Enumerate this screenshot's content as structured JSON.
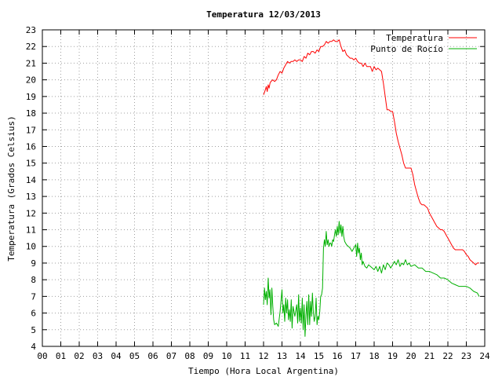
{
  "chart_data": {
    "type": "line",
    "title": "Temperatura 12/03/2013",
    "xlabel": "Tiempo (Hora Local Argentina)",
    "ylabel": "Temperatura (Grados Celsius)",
    "xlim": [
      0,
      24
    ],
    "ylim": [
      4,
      23
    ],
    "x_ticks": [
      "00",
      "01",
      "02",
      "03",
      "04",
      "05",
      "06",
      "07",
      "08",
      "09",
      "10",
      "11",
      "12",
      "13",
      "14",
      "15",
      "16",
      "17",
      "18",
      "19",
      "20",
      "21",
      "22",
      "23",
      "24"
    ],
    "y_ticks": [
      "4",
      "5",
      "6",
      "7",
      "8",
      "9",
      "10",
      "11",
      "12",
      "13",
      "14",
      "15",
      "16",
      "17",
      "18",
      "19",
      "20",
      "21",
      "22",
      "23"
    ],
    "grid": true,
    "legend_position": "top-right",
    "series": [
      {
        "name": "Temperatura",
        "color": "#ff0000",
        "x": [
          12.0,
          12.1,
          12.15,
          12.2,
          12.25,
          12.3,
          12.35,
          12.4,
          12.5,
          12.6,
          12.7,
          12.8,
          12.9,
          13.0,
          13.1,
          13.2,
          13.3,
          13.4,
          13.5,
          13.6,
          13.7,
          13.8,
          13.9,
          14.0,
          14.1,
          14.2,
          14.3,
          14.4,
          14.5,
          14.6,
          14.7,
          14.8,
          14.9,
          15.0,
          15.1,
          15.2,
          15.3,
          15.4,
          15.5,
          15.6,
          15.7,
          15.8,
          15.9,
          16.0,
          16.1,
          16.2,
          16.3,
          16.4,
          16.5,
          16.6,
          16.7,
          16.8,
          16.9,
          17.0,
          17.1,
          17.2,
          17.3,
          17.4,
          17.5,
          17.6,
          17.7,
          17.8,
          17.9,
          18.0,
          18.1,
          18.2,
          18.3,
          18.4,
          18.5,
          18.6,
          18.7,
          18.8,
          18.9,
          19.0,
          19.1,
          19.2,
          19.3,
          19.4,
          19.5,
          19.6,
          19.7,
          19.8,
          19.9,
          20.0,
          20.1,
          20.2,
          20.3,
          20.4,
          20.5,
          20.6,
          20.7,
          20.8,
          20.9,
          21.0,
          21.1,
          21.2,
          21.3,
          21.4,
          21.5,
          21.6,
          21.7,
          21.8,
          21.9,
          22.0,
          22.1,
          22.2,
          22.3,
          22.4,
          22.5,
          22.6,
          22.7,
          22.8,
          22.9,
          23.0,
          23.1,
          23.2,
          23.3,
          23.4,
          23.5,
          23.6,
          23.7
        ],
        "values": [
          19.1,
          19.4,
          19.6,
          19.3,
          19.7,
          19.5,
          19.8,
          19.9,
          20.0,
          19.9,
          20.0,
          20.3,
          20.5,
          20.4,
          20.7,
          20.9,
          21.1,
          21.0,
          21.1,
          21.1,
          21.2,
          21.1,
          21.2,
          21.2,
          21.1,
          21.4,
          21.3,
          21.6,
          21.5,
          21.7,
          21.7,
          21.6,
          21.8,
          21.7,
          22.0,
          22.0,
          22.1,
          22.3,
          22.2,
          22.3,
          22.3,
          22.4,
          22.3,
          22.3,
          22.4,
          22.0,
          21.7,
          21.8,
          21.5,
          21.4,
          21.3,
          21.3,
          21.2,
          21.3,
          21.1,
          21.0,
          21.0,
          20.8,
          21.0,
          20.8,
          20.8,
          20.8,
          20.5,
          20.8,
          20.6,
          20.7,
          20.6,
          20.5,
          19.8,
          19.0,
          18.2,
          18.2,
          18.1,
          18.1,
          17.5,
          16.8,
          16.3,
          15.9,
          15.5,
          15.0,
          14.7,
          14.7,
          14.7,
          14.7,
          14.3,
          13.7,
          13.3,
          12.9,
          12.6,
          12.5,
          12.5,
          12.4,
          12.3,
          12.0,
          11.8,
          11.6,
          11.4,
          11.2,
          11.1,
          11.0,
          11.0,
          10.9,
          10.7,
          10.5,
          10.3,
          10.1,
          9.9,
          9.8,
          9.8,
          9.8,
          9.8,
          9.8,
          9.7,
          9.5,
          9.4,
          9.2,
          9.1,
          9.0,
          8.9,
          9.0,
          9.0
        ]
      },
      {
        "name": "Punto de Rocío",
        "color": "#00b000",
        "x": [
          12.0,
          12.05,
          12.1,
          12.15,
          12.2,
          12.25,
          12.3,
          12.35,
          12.4,
          12.45,
          12.5,
          12.55,
          12.6,
          12.7,
          12.8,
          12.9,
          13.0,
          13.05,
          13.1,
          13.15,
          13.2,
          13.25,
          13.3,
          13.35,
          13.4,
          13.45,
          13.5,
          13.55,
          13.6,
          13.7,
          13.8,
          13.85,
          13.9,
          13.95,
          14.0,
          14.05,
          14.1,
          14.15,
          14.2,
          14.25,
          14.3,
          14.35,
          14.4,
          14.45,
          14.5,
          14.55,
          14.6,
          14.65,
          14.7,
          14.75,
          14.8,
          14.85,
          14.9,
          14.95,
          15.0,
          15.05,
          15.1,
          15.15,
          15.2,
          15.25,
          15.3,
          15.35,
          15.4,
          15.45,
          15.5,
          15.55,
          15.6,
          15.65,
          15.7,
          15.75,
          15.8,
          15.85,
          15.9,
          15.95,
          16.0,
          16.05,
          16.1,
          16.15,
          16.2,
          16.25,
          16.3,
          16.35,
          16.4,
          16.45,
          16.5,
          16.6,
          16.7,
          16.8,
          16.9,
          17.0,
          17.05,
          17.1,
          17.15,
          17.2,
          17.25,
          17.3,
          17.35,
          17.4,
          17.5,
          17.6,
          17.7,
          17.8,
          17.9,
          18.0,
          18.1,
          18.2,
          18.3,
          18.4,
          18.5,
          18.6,
          18.7,
          18.8,
          18.9,
          19.0,
          19.1,
          19.2,
          19.3,
          19.4,
          19.5,
          19.6,
          19.7,
          19.8,
          19.9,
          20.0,
          20.2,
          20.4,
          20.6,
          20.8,
          21.0,
          21.2,
          21.4,
          21.6,
          21.8,
          22.0,
          22.2,
          22.4,
          22.6,
          22.8,
          23.0,
          23.2,
          23.4,
          23.6,
          23.7
        ],
        "values": [
          6.5,
          7.5,
          6.8,
          7.3,
          6.5,
          8.1,
          6.9,
          7.4,
          5.9,
          7.5,
          6.4,
          5.6,
          5.3,
          5.4,
          5.2,
          6.1,
          7.4,
          6.0,
          6.5,
          5.5,
          6.9,
          6.0,
          6.8,
          5.6,
          6.2,
          5.5,
          6.8,
          5.1,
          6.4,
          5.8,
          6.5,
          5.4,
          7.1,
          5.5,
          6.3,
          5.4,
          6.9,
          5.0,
          6.5,
          4.6,
          5.9,
          6.7,
          5.3,
          7.1,
          5.3,
          6.7,
          5.8,
          7.2,
          6.1,
          5.5,
          5.8,
          6.9,
          5.3,
          5.8,
          5.6,
          6.1,
          7.0,
          7.1,
          7.5,
          9.9,
          10.4,
          10.0,
          10.9,
          10.1,
          10.4,
          10.0,
          10.2,
          10.2,
          10.0,
          10.4,
          10.3,
          10.7,
          11.0,
          10.6,
          11.2,
          10.7,
          11.5,
          10.8,
          11.3,
          10.6,
          11.2,
          10.6,
          10.3,
          10.2,
          10.1,
          10.0,
          9.9,
          9.7,
          9.9,
          10.1,
          9.4,
          10.2,
          9.6,
          9.9,
          9.2,
          9.6,
          8.9,
          9.1,
          8.8,
          8.7,
          8.9,
          8.8,
          8.7,
          8.6,
          8.8,
          8.5,
          8.8,
          8.4,
          8.9,
          8.6,
          9.0,
          8.9,
          8.7,
          8.9,
          9.1,
          8.9,
          9.2,
          8.8,
          9.0,
          8.9,
          9.2,
          8.9,
          9.0,
          8.8,
          8.9,
          8.7,
          8.7,
          8.5,
          8.5,
          8.4,
          8.3,
          8.1,
          8.1,
          8.0,
          7.8,
          7.7,
          7.6,
          7.6,
          7.6,
          7.5,
          7.3,
          7.2,
          7.0
        ]
      }
    ]
  }
}
